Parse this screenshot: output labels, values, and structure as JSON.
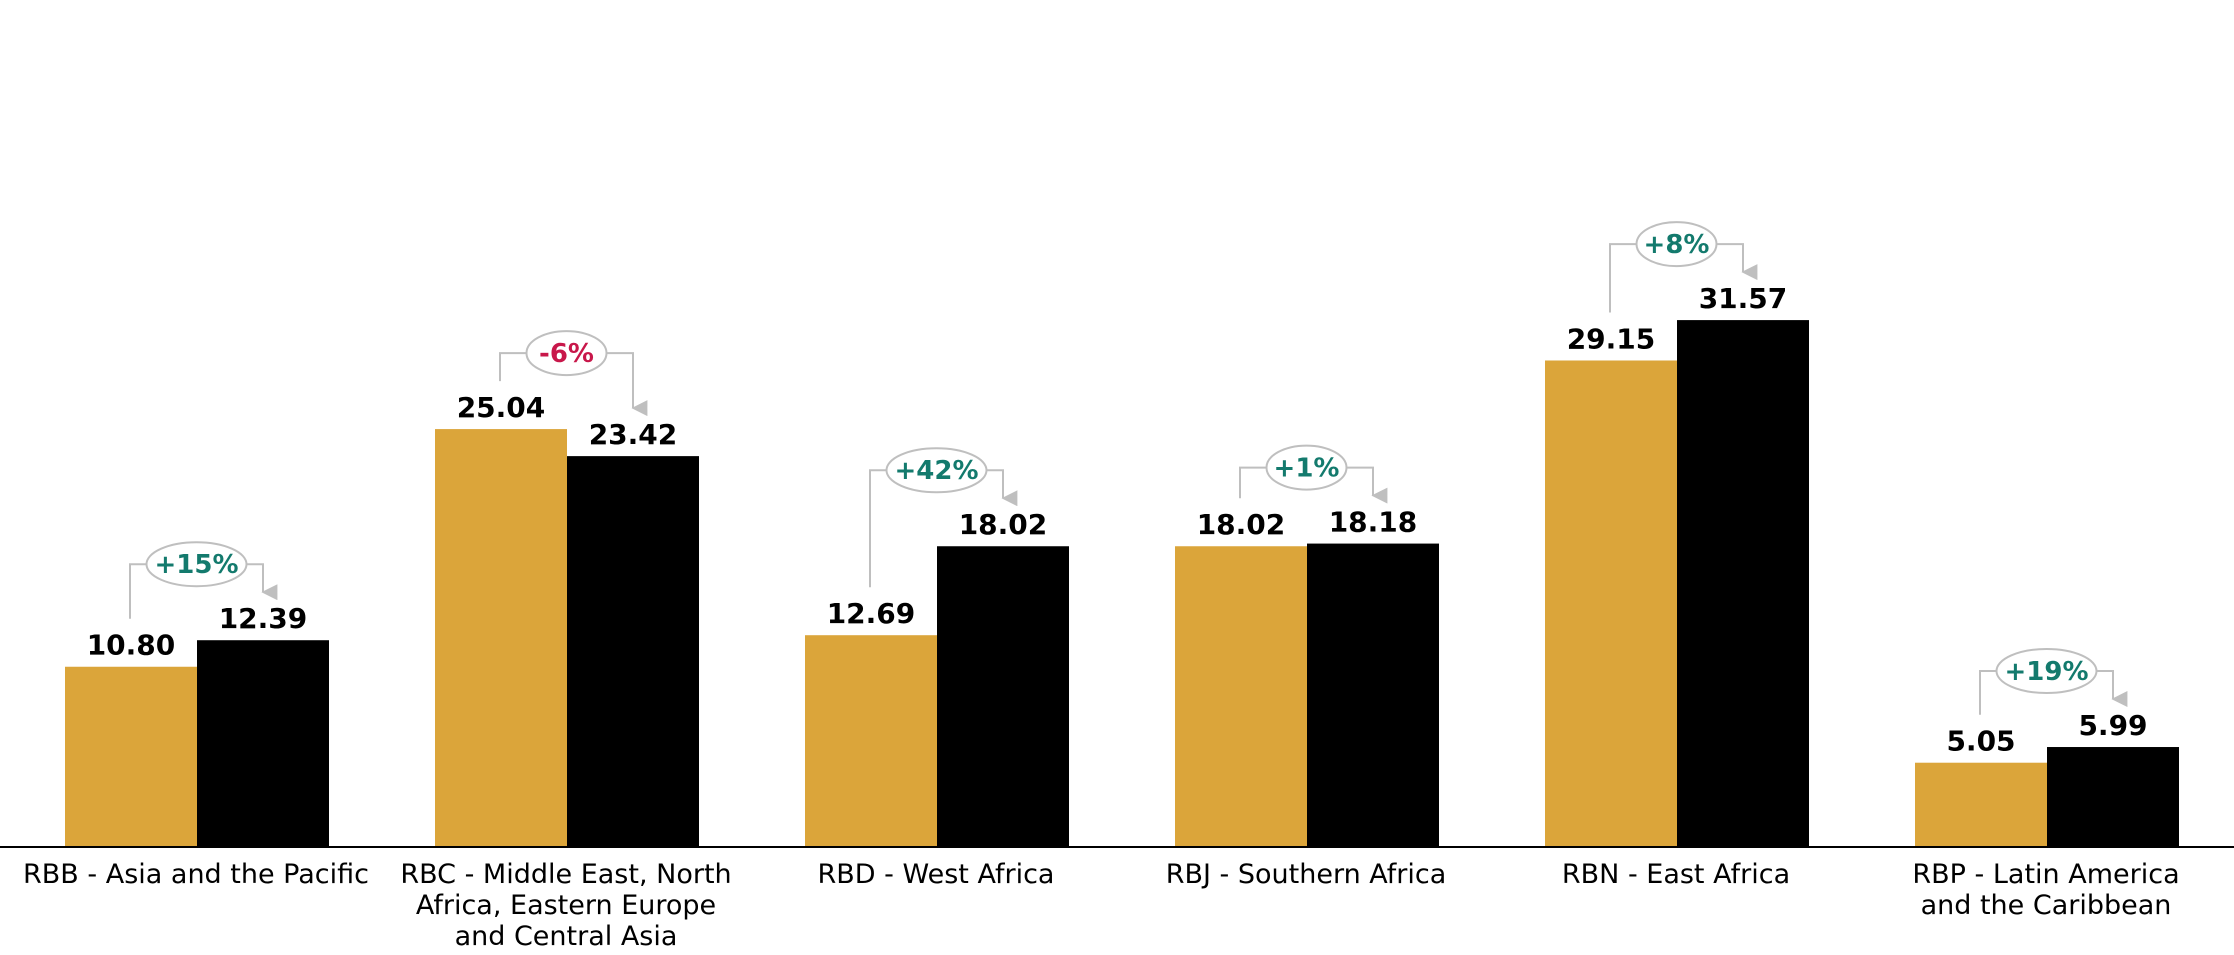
{
  "chart_data": {
    "type": "bar",
    "title": "",
    "xlabel": "",
    "ylabel": "",
    "categories": [
      [
        "RBB - Asia and the Pacific"
      ],
      [
        "RBC - Middle East, North",
        "Africa, Eastern Europe",
        "and Central Asia"
      ],
      [
        "RBD - West Africa"
      ],
      [
        "RBJ - Southern Africa"
      ],
      [
        "RBN - East Africa"
      ],
      [
        "RBP - Latin America",
        "and the Caribbean"
      ]
    ],
    "series": [
      {
        "values": [
          10.8,
          25.04,
          12.69,
          18.02,
          29.15,
          5.05
        ],
        "labels": [
          "10.80",
          "25.04",
          "12.69",
          "18.02",
          "29.15",
          "5.05"
        ],
        "color": "#DBA53A"
      },
      {
        "values": [
          12.39,
          23.42,
          18.02,
          18.18,
          31.57,
          5.99
        ],
        "labels": [
          "12.39",
          "23.42",
          "18.02",
          "18.18",
          "31.57",
          "5.99"
        ],
        "color": "#000000"
      }
    ],
    "changes": [
      "+15%",
      "-6%",
      "+42%",
      "+1%",
      "+8%",
      "+19%"
    ],
    "change_colors": {
      "positive": "#137A6D",
      "negative": "#C8174A"
    },
    "connector_color": "#BFBFBF",
    "ylim": [
      0,
      31.57
    ],
    "grid": false,
    "legend": "none"
  }
}
